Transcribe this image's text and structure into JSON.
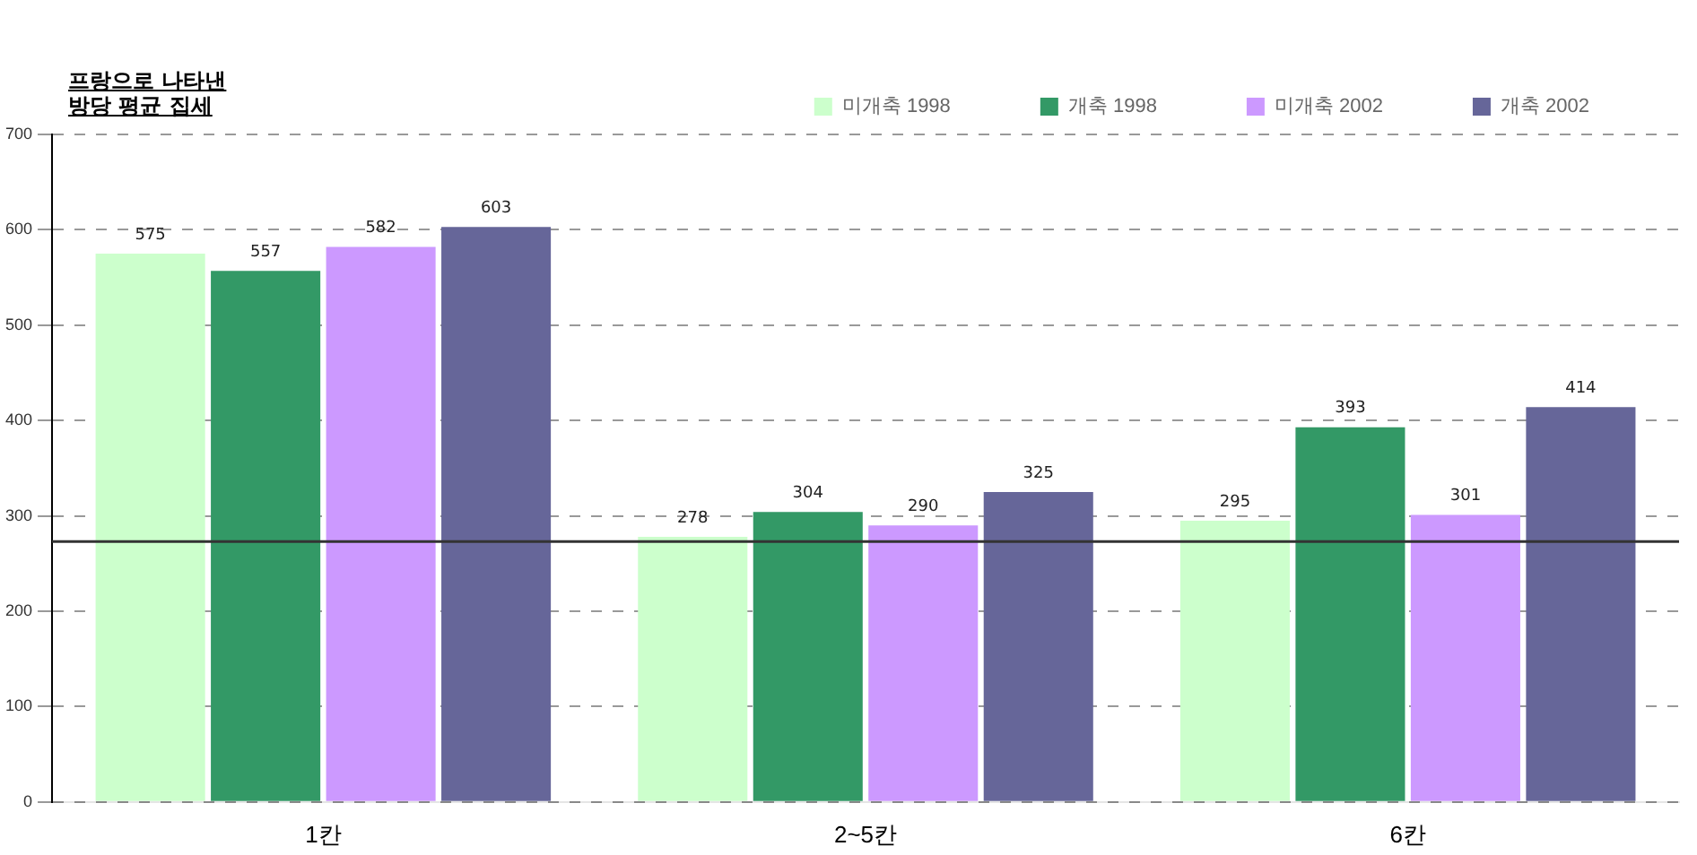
{
  "chart_data": {
    "type": "bar",
    "title": "프랑으로 나타낸\n방당 평균 집세",
    "categories": [
      "1칸",
      "2~5칸",
      "6칸"
    ],
    "series": [
      {
        "name": "미개축 1998",
        "color": "#ccffcc",
        "values": [
          575,
          278,
          295
        ]
      },
      {
        "name": "개축 1998",
        "color": "#339966",
        "values": [
          557,
          304,
          393
        ]
      },
      {
        "name": "미개축 2002",
        "color": "#cc99ff",
        "values": [
          582,
          290,
          301
        ]
      },
      {
        "name": "개축 2002",
        "color": "#666699",
        "values": [
          603,
          325,
          414
        ]
      }
    ],
    "ylim": [
      0,
      700
    ],
    "yticks": [
      0,
      100,
      200,
      300,
      400,
      500,
      600,
      700
    ],
    "grid": "y",
    "legend": "top right",
    "data_labels": true,
    "ref_lines": [
      {
        "axis": "y",
        "value": 273,
        "color": "#333333"
      }
    ]
  }
}
